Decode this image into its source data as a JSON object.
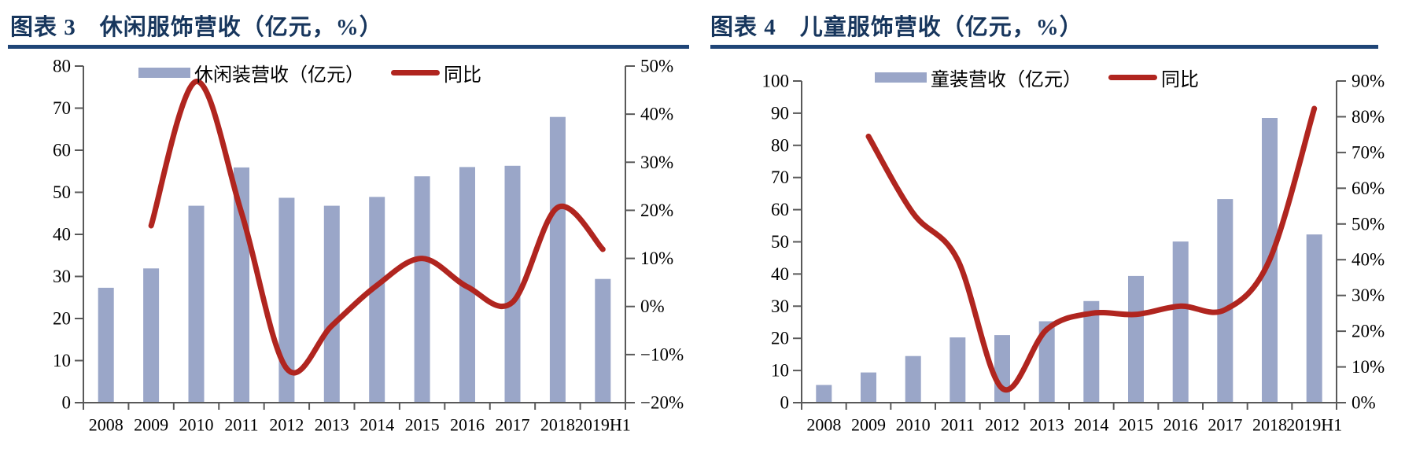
{
  "style": {
    "background": "#FFFFFF",
    "title_color": "#17365D",
    "rule_color": "#1F4577",
    "axis_color": "#595959",
    "text_color": "#000000",
    "bar_color": "#9AA6C8",
    "line_color": "#B0251F"
  },
  "chart_data": [
    {
      "type": "bar+line",
      "title": "图表 3　休闲服饰营收（亿元，%）",
      "categories": [
        "2008",
        "2009",
        "2010",
        "2011",
        "2012",
        "2013",
        "2014",
        "2015",
        "2016",
        "2017",
        "2018",
        "2019H1"
      ],
      "series": [
        {
          "name": "休闲装营收（亿元）",
          "type": "bar",
          "axis": "left",
          "values": [
            27.3,
            31.9,
            46.8,
            55.9,
            48.7,
            46.8,
            48.9,
            53.8,
            56.0,
            56.3,
            67.9,
            29.4
          ]
        },
        {
          "name": "同比",
          "type": "line",
          "axis": "right",
          "values": [
            null,
            16.8,
            46.8,
            19.5,
            -12.9,
            -4.0,
            4.4,
            10.0,
            4.1,
            0.9,
            20.6,
            11.9
          ]
        }
      ],
      "left_axis": {
        "min": 0,
        "max": 80,
        "step": 10,
        "labels": [
          "0",
          "10",
          "20",
          "30",
          "40",
          "50",
          "60",
          "70",
          "80"
        ]
      },
      "right_axis": {
        "min": -20,
        "max": 50,
        "step": 10,
        "labels": [
          "−20%",
          "−10%",
          "0%",
          "10%",
          "20%",
          "30%",
          "40%",
          "50%"
        ]
      },
      "legend_position": "top-center",
      "grid": false
    },
    {
      "type": "bar+line",
      "title": "图表 4　儿童服饰营收（亿元，%）",
      "categories": [
        "2008",
        "2009",
        "2010",
        "2011",
        "2012",
        "2013",
        "2014",
        "2015",
        "2016",
        "2017",
        "2018",
        "2019H1"
      ],
      "series": [
        {
          "name": "童装营收（亿元）",
          "type": "bar",
          "axis": "left",
          "values": [
            5.5,
            9.4,
            14.5,
            20.3,
            21.0,
            25.3,
            31.6,
            39.4,
            50.1,
            63.3,
            88.5,
            52.3
          ]
        },
        {
          "name": "同比",
          "type": "line",
          "axis": "right",
          "values": [
            null,
            74.5,
            53.0,
            40.0,
            4.0,
            20.5,
            25.0,
            24.7,
            27.0,
            26.0,
            40.0,
            82.3
          ]
        }
      ],
      "left_axis": {
        "min": 0,
        "max": 100,
        "step": 10,
        "labels": [
          "0",
          "10",
          "20",
          "30",
          "40",
          "50",
          "60",
          "70",
          "80",
          "90",
          "100"
        ]
      },
      "right_axis": {
        "min": 0,
        "max": 90,
        "step": 10,
        "labels": [
          "0%",
          "10%",
          "20%",
          "30%",
          "40%",
          "50%",
          "60%",
          "70%",
          "80%",
          "90%"
        ]
      },
      "legend_position": "top-center",
      "grid": false
    }
  ]
}
